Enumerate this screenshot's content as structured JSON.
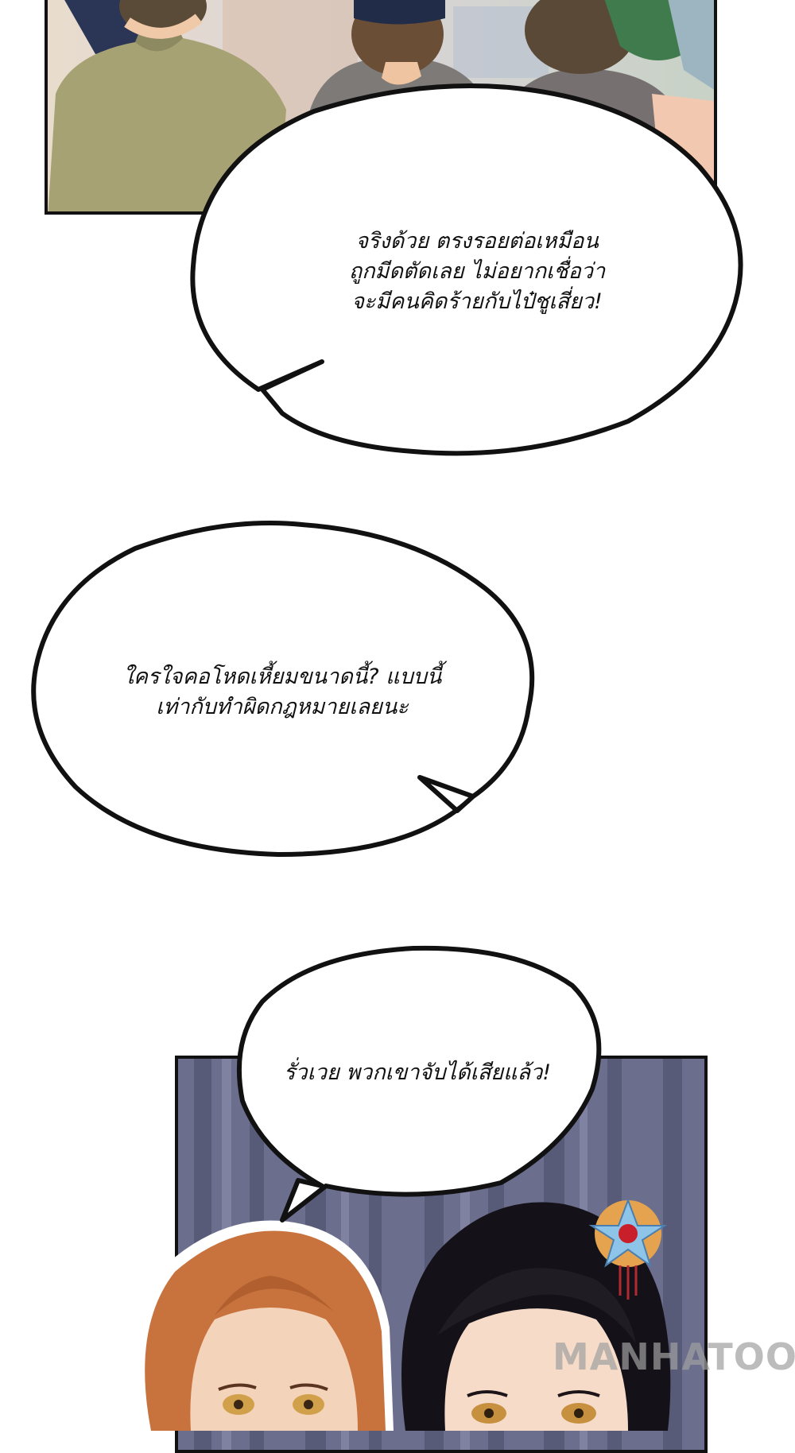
{
  "bubbles": [
    {
      "lines": [
        "จริงด้วย ตรงรอยต่อเหมือน",
        "ถูกมีดตัดเลย ไม่อยากเชื่อว่า",
        "จะมีคนคิดร้ายกับไป๋ชูเสี่ยว!"
      ]
    },
    {
      "lines": [
        "ใครใจคอโหดเหี้ยมขนาดนี้? แบบนี้",
        "เท่ากับทำผิดกฎหมายเลยนะ"
      ]
    },
    {
      "lines": [
        "รั่วเวย พวกเขาจับได้เสียแล้ว!"
      ]
    }
  ],
  "watermark": "MANHATOON",
  "colors": {
    "ink": "#111111",
    "paper": "#ffffff",
    "curtain": "#6b6e8c",
    "hair_auburn": "#c8733e",
    "hair_black": "#141218"
  }
}
